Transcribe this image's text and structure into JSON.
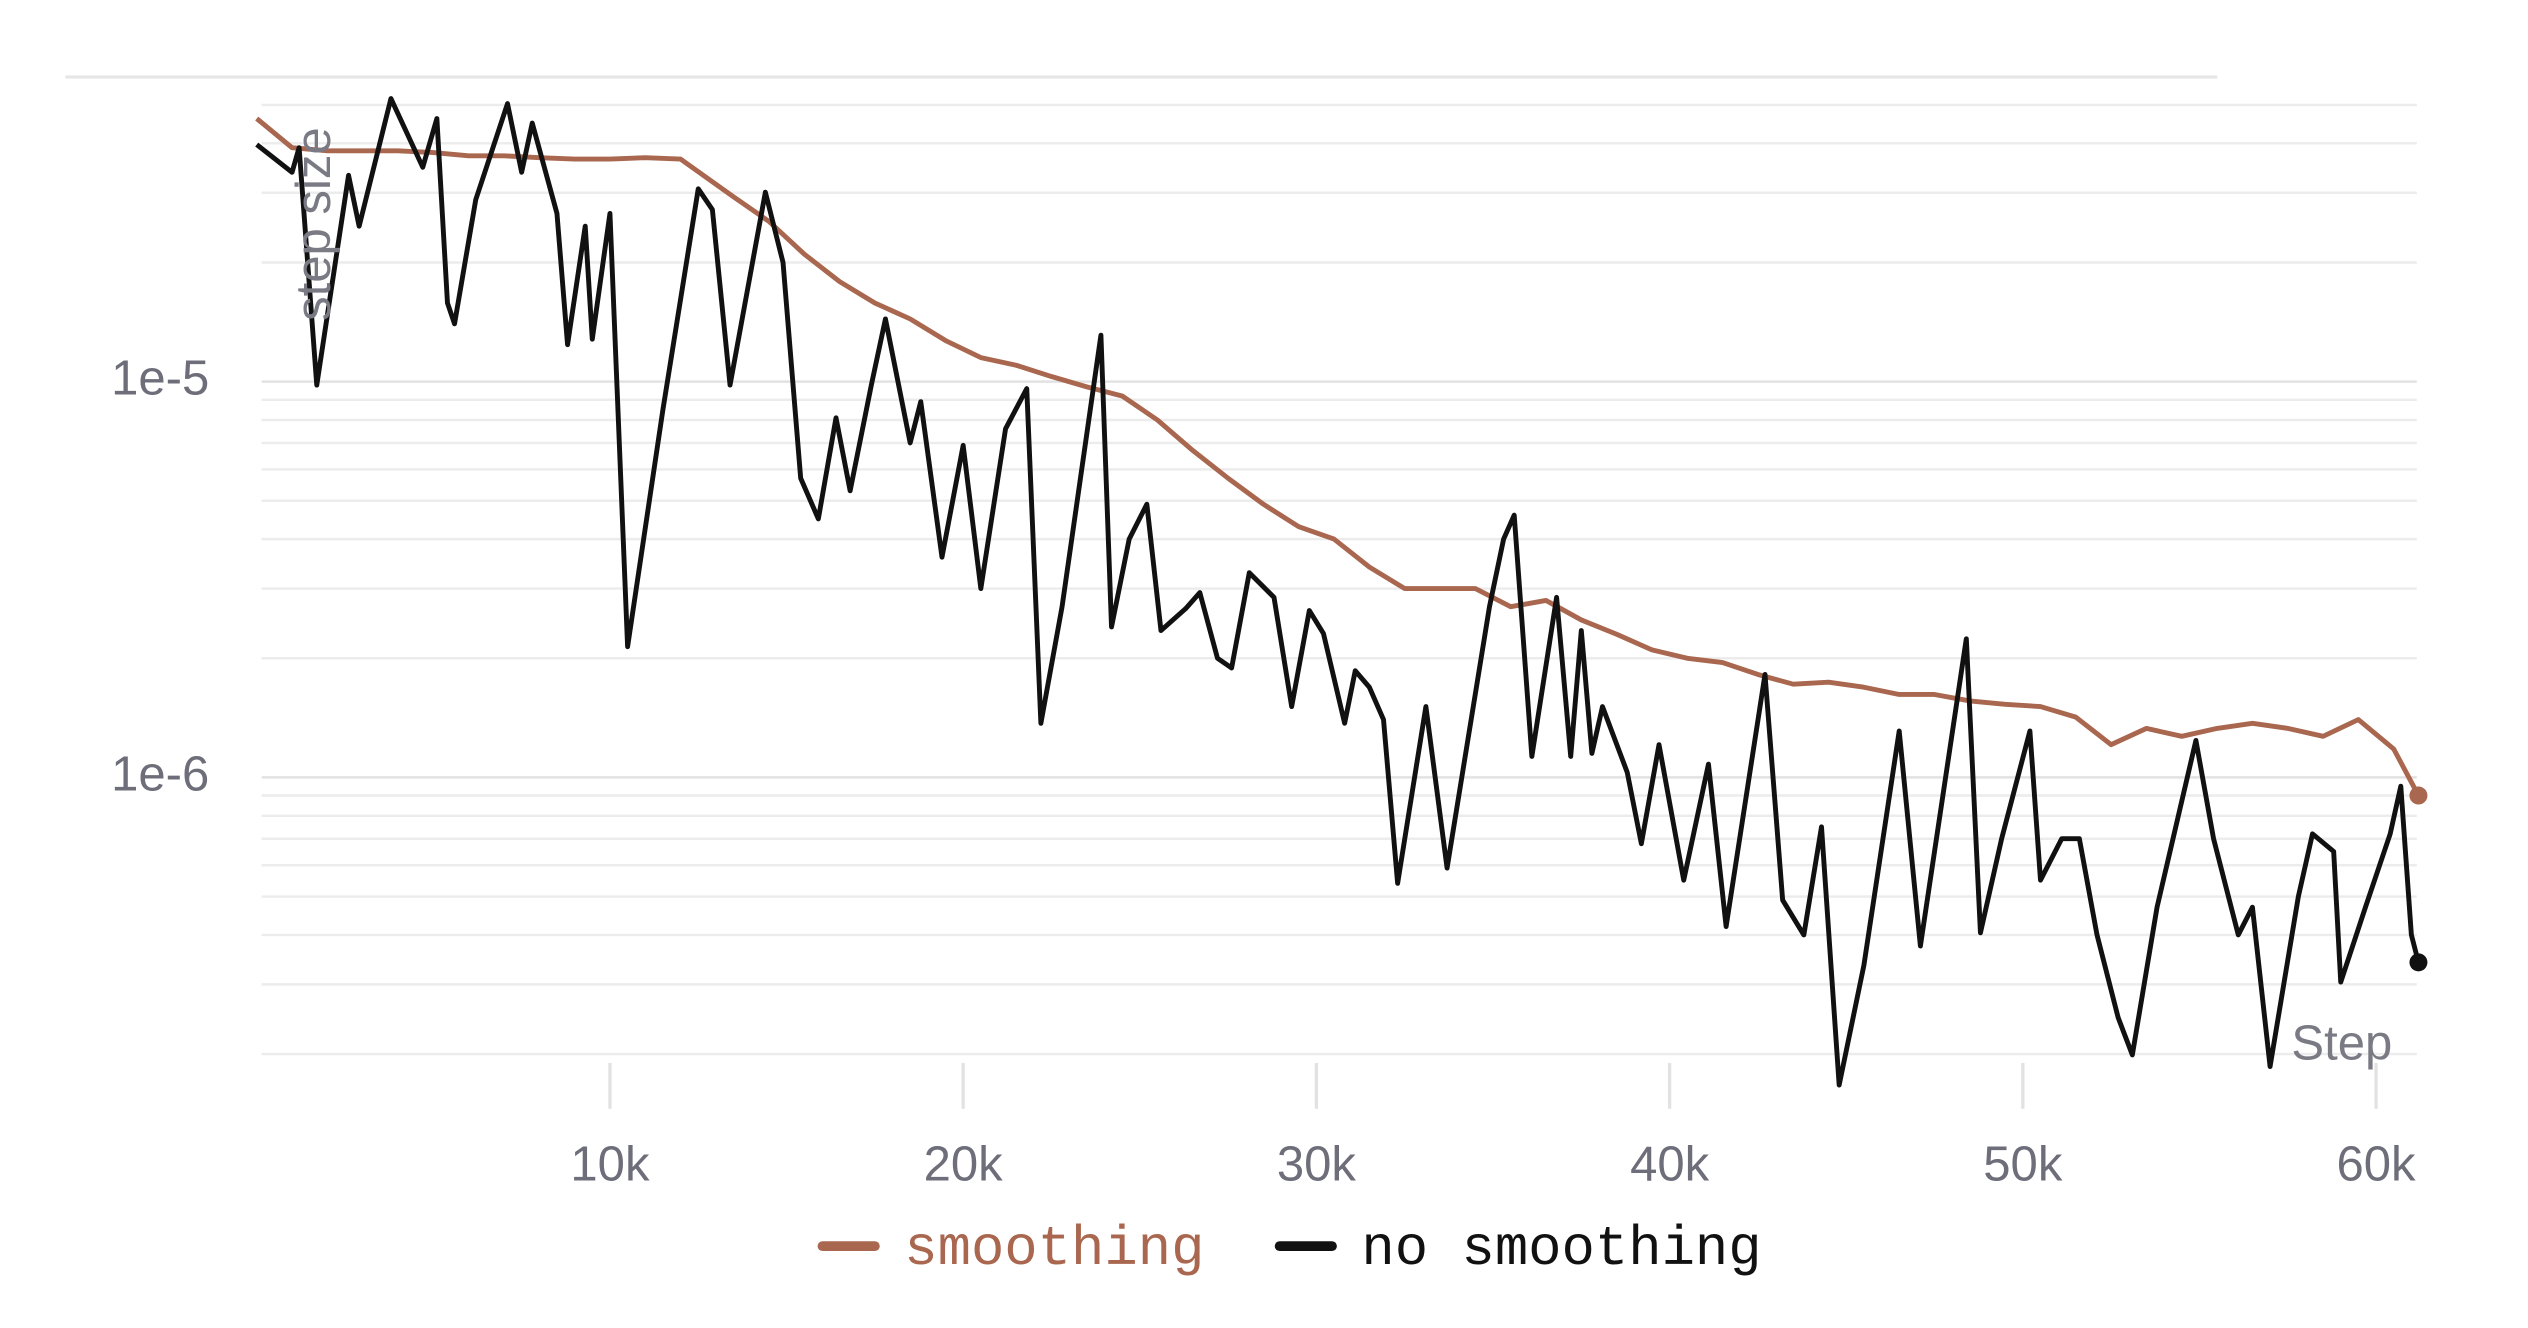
{
  "chart_data": {
    "type": "line",
    "y_label": "step size",
    "x_label": "Step",
    "log_y": true,
    "grid": true,
    "legend": "bottom",
    "xlim": [
      0,
      61200
    ],
    "ylim": [
      1.6e-07,
      5.2e-05
    ],
    "xticks": [
      {
        "value": 10000,
        "label": "10k"
      },
      {
        "value": 20000,
        "label": "20k"
      },
      {
        "value": 30000,
        "label": "30k"
      },
      {
        "value": 40000,
        "label": "40k"
      },
      {
        "value": 50000,
        "label": "50k"
      },
      {
        "value": 60000,
        "label": "60k"
      }
    ],
    "yticks": [
      {
        "value": 1e-06,
        "label": "1e-6"
      },
      {
        "value": 1e-05,
        "label": "1e-5"
      }
    ],
    "minor_yticks": [
      2e-07,
      3e-07,
      4e-07,
      5e-07,
      6e-07,
      7e-07,
      8e-07,
      9e-07,
      2e-06,
      3e-06,
      4e-06,
      5e-06,
      6e-06,
      7e-06,
      8e-06,
      9e-06,
      2e-05,
      3e-05,
      4e-05,
      5e-05
    ],
    "series": [
      {
        "name": "smoothing",
        "color": "#a9674f",
        "x": [
          0,
          1000,
          2000,
          3000,
          4000,
          5000,
          6000,
          7000,
          8000,
          9000,
          10000,
          11000,
          12000,
          13500,
          14500,
          15500,
          16500,
          17500,
          18500,
          19500,
          20500,
          21500,
          22500,
          23500,
          24500,
          25500,
          26500,
          27500,
          28500,
          29500,
          30500,
          31500,
          32500,
          33500,
          34500,
          35500,
          36500,
          37500,
          38500,
          39500,
          40500,
          41500,
          42500,
          43500,
          44500,
          45500,
          46500,
          47500,
          48500,
          49500,
          50500,
          51500,
          52500,
          53500,
          54500,
          55500,
          56500,
          57500,
          58500,
          59500,
          60500,
          61200
        ],
        "values": [
          4.62e-05,
          3.9e-05,
          3.83e-05,
          3.83e-05,
          3.83e-05,
          3.79e-05,
          3.72e-05,
          3.72e-05,
          3.68e-05,
          3.65e-05,
          3.65e-05,
          3.68e-05,
          3.65e-05,
          2.93e-05,
          2.54e-05,
          2.1e-05,
          1.79e-05,
          1.58e-05,
          1.44e-05,
          1.27e-05,
          1.15e-05,
          1.1e-05,
          1.03e-05,
          9.7e-06,
          9.2e-06,
          8e-06,
          6.7e-06,
          5.7e-06,
          4.9e-06,
          4.3e-06,
          4e-06,
          3.4e-06,
          3e-06,
          3e-06,
          3e-06,
          2.7e-06,
          2.8e-06,
          2.5e-06,
          2.3e-06,
          2.1e-06,
          2e-06,
          1.95e-06,
          1.82e-06,
          1.72e-06,
          1.74e-06,
          1.69e-06,
          1.62e-06,
          1.62e-06,
          1.56e-06,
          1.53e-06,
          1.51e-06,
          1.42e-06,
          1.21e-06,
          1.33e-06,
          1.27e-06,
          1.33e-06,
          1.37e-06,
          1.33e-06,
          1.27e-06,
          1.4e-06,
          1.18e-06,
          9e-07
        ]
      },
      {
        "name": "no smoothing",
        "color": "#111111",
        "x": [
          0,
          1000,
          1200,
          1700,
          2600,
          2900,
          3800,
          4700,
          5100,
          5400,
          5600,
          6200,
          7100,
          7500,
          7800,
          8500,
          8800,
          9300,
          9500,
          10000,
          10500,
          11500,
          12500,
          12900,
          13400,
          14400,
          14900,
          15400,
          15900,
          16400,
          16800,
          17400,
          17800,
          18500,
          18800,
          19400,
          20000,
          20500,
          21200,
          21800,
          22200,
          22800,
          23900,
          24200,
          24700,
          25200,
          25600,
          26300,
          26700,
          27200,
          27600,
          28100,
          28800,
          29300,
          29800,
          30200,
          30800,
          31100,
          31500,
          31900,
          32300,
          33100,
          33700,
          34900,
          35300,
          35600,
          36100,
          36800,
          37200,
          37500,
          37800,
          38100,
          38800,
          39200,
          39700,
          40400,
          41100,
          41600,
          42700,
          43200,
          43800,
          44300,
          44800,
          45500,
          46500,
          47100,
          48400,
          48800,
          49400,
          50200,
          50500,
          51100,
          51600,
          52100,
          52700,
          53100,
          53800,
          54900,
          55400,
          56100,
          56500,
          57000,
          57800,
          58200,
          58800,
          59000,
          59700,
          60400,
          60700,
          61000,
          61200
        ],
        "values": [
          3.97e-05,
          3.38e-05,
          3.9e-05,
          9.8e-06,
          3.32e-05,
          2.47e-05,
          5.19e-05,
          3.48e-05,
          4.62e-05,
          1.58e-05,
          1.4e-05,
          2.88e-05,
          5.04e-05,
          3.38e-05,
          4.5e-05,
          2.66e-05,
          1.24e-05,
          2.47e-05,
          1.28e-05,
          2.66e-05,
          2.14e-06,
          8.5e-06,
          3.07e-05,
          2.72e-05,
          9.8e-06,
          3.01e-05,
          2e-05,
          5.7e-06,
          4.5e-06,
          8.1e-06,
          5.3e-06,
          9.8e-06,
          1.44e-05,
          7e-06,
          8.9e-06,
          3.6e-06,
          6.9e-06,
          3e-06,
          7.6e-06,
          9.6e-06,
          1.37e-06,
          2.7e-06,
          1.31e-05,
          2.4e-06,
          4e-06,
          4.9e-06,
          2.35e-06,
          2.67e-06,
          2.93e-06,
          2e-06,
          1.89e-06,
          3.29e-06,
          2.85e-06,
          1.51e-06,
          2.64e-06,
          2.31e-06,
          1.37e-06,
          1.86e-06,
          1.69e-06,
          1.4e-06,
          5.4e-07,
          1.51e-06,
          5.9e-07,
          2.7e-06,
          4e-06,
          4.6e-06,
          1.13e-06,
          2.85e-06,
          1.13e-06,
          2.35e-06,
          1.15e-06,
          1.51e-06,
          1.03e-06,
          6.8e-07,
          1.21e-06,
          5.5e-07,
          1.08e-06,
          4.2e-07,
          1.82e-06,
          4.9e-07,
          4e-07,
          7.5e-07,
          1.67e-07,
          3.35e-07,
          1.31e-06,
          3.75e-07,
          2.24e-06,
          4.05e-07,
          7e-07,
          1.31e-06,
          5.5e-07,
          7e-07,
          7e-07,
          4e-07,
          2.47e-07,
          1.99e-07,
          4.7e-07,
          1.24e-06,
          7e-07,
          4e-07,
          4.7e-07,
          1.86e-07,
          5e-07,
          7.2e-07,
          6.5e-07,
          3.04e-07,
          4.7e-07,
          7.2e-07,
          9.5e-07,
          4e-07,
          3.41e-07
        ]
      }
    ]
  }
}
